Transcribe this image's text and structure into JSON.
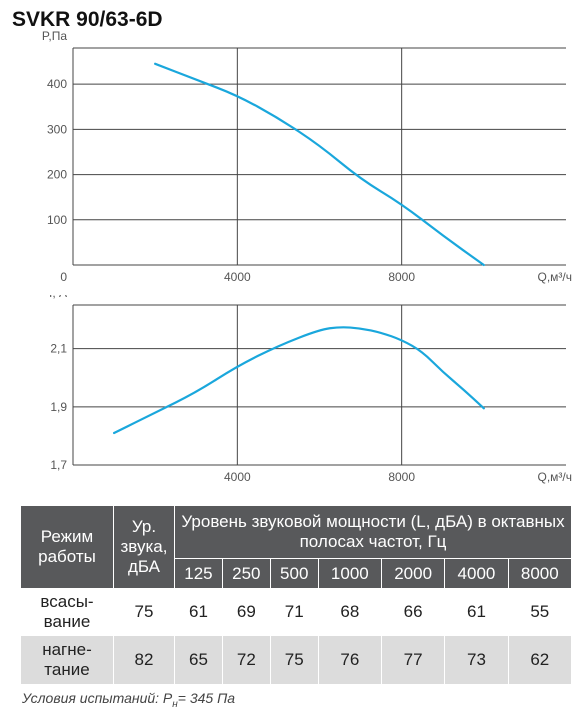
{
  "title": "SVKR 90/63-6D",
  "chart_data": [
    {
      "type": "line",
      "ylabel": "P,Па",
      "xlabel": "Q,м³/ч",
      "xlim": [
        0,
        12000
      ],
      "ylim": [
        0,
        480
      ],
      "x_ticks": [
        "4000",
        "8000"
      ],
      "y_ticks": [
        "0",
        "100",
        "200",
        "300",
        "400"
      ],
      "grid": true,
      "color": "#1aa7dc",
      "series": [
        {
          "x": [
            2000,
            3000,
            4000,
            5000,
            6000,
            7000,
            8000,
            9000,
            10000
          ],
          "y": [
            445,
            410,
            375,
            325,
            265,
            190,
            135,
            65,
            0
          ]
        }
      ]
    },
    {
      "type": "line",
      "ylabel": "I, А",
      "xlabel": "Q,м³/ч",
      "xlim": [
        0,
        12000
      ],
      "ylim": [
        1.7,
        2.25
      ],
      "x_ticks": [
        "4000",
        "8000"
      ],
      "y_ticks": [
        "1,7",
        "1,9",
        "2,1"
      ],
      "grid": true,
      "color": "#1aa7dc",
      "series": [
        {
          "x": [
            1000,
            2000,
            3000,
            4000,
            5000,
            6000,
            6500,
            7000,
            7500,
            8000,
            8500,
            9000,
            9500,
            10000
          ],
          "y": [
            1.81,
            1.88,
            1.95,
            2.04,
            2.11,
            2.165,
            2.175,
            2.17,
            2.155,
            2.13,
            2.09,
            2.02,
            1.96,
            1.895
          ]
        }
      ]
    }
  ],
  "table": {
    "mode_header": "Режим работы",
    "level_header": "Ур. звука, дБА",
    "power_header": "Уровень звуковой мощности (L, дБА) в октавных полосах частот, Гц",
    "frequencies": [
      "125",
      "250",
      "500",
      "1000",
      "2000",
      "4000",
      "8000"
    ],
    "rows": [
      {
        "mode": "всасы-вание",
        "level": "75",
        "values": [
          "61",
          "69",
          "71",
          "68",
          "66",
          "61",
          "55"
        ]
      },
      {
        "mode": "нагне-тание",
        "level": "82",
        "values": [
          "65",
          "72",
          "75",
          "76",
          "77",
          "73",
          "62"
        ]
      }
    ]
  },
  "note_prefix": "Условия испытаний: P",
  "note_sub": "н",
  "note_suffix": "= 345 Па"
}
